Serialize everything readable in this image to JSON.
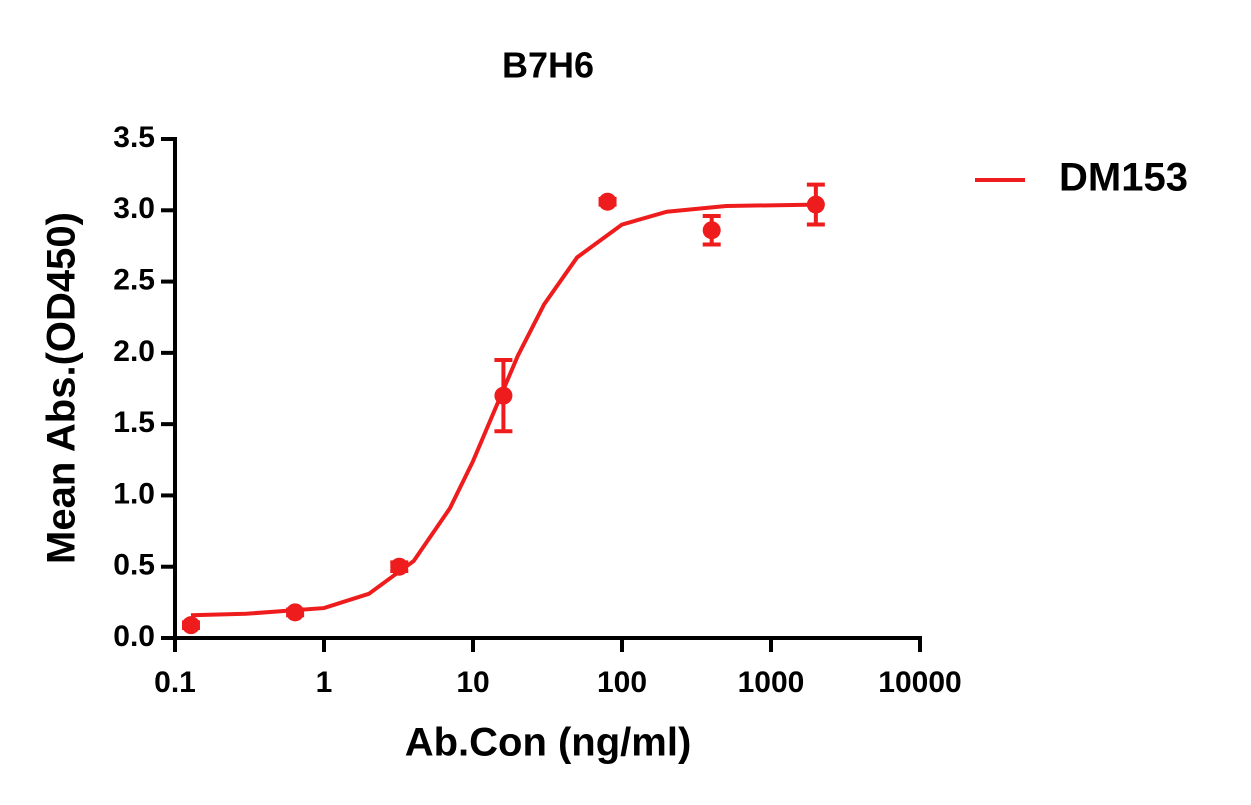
{
  "chart_data": {
    "type": "scatter",
    "title": "B7H6",
    "xlabel": "Ab.Con (ng/ml)",
    "ylabel": "Mean Abs.(OD450)",
    "xscale": "log",
    "xlim": [
      0.1,
      10000
    ],
    "xticks": [
      0.1,
      1,
      10,
      100,
      1000,
      10000
    ],
    "ylim": [
      0,
      3.5
    ],
    "yticks": [
      {
        "value": 0,
        "label": "0.0"
      },
      0.5,
      {
        "value": 1,
        "label": "1.0"
      },
      1.5,
      {
        "value": 2,
        "label": "2.0"
      },
      2.5,
      {
        "value": 3,
        "label": "3.0"
      },
      3.5
    ],
    "legend": "right",
    "series": [
      {
        "name": "DM153",
        "color": "#ee1c1c",
        "x": [
          0.128,
          0.64,
          3.2,
          16,
          80,
          400,
          2000
        ],
        "values": [
          0.09,
          0.18,
          0.5,
          1.7,
          3.06,
          2.86,
          3.04
        ],
        "errors": [
          0.02,
          0.02,
          0.03,
          0.25,
          0.02,
          0.1,
          0.14
        ],
        "curve": {
          "x": [
            0.128,
            0.3,
            1,
            2,
            4,
            7,
            10,
            14,
            20,
            30,
            50,
            100,
            200,
            500,
            2000
          ],
          "values": [
            0.16,
            0.17,
            0.21,
            0.31,
            0.54,
            0.91,
            1.24,
            1.6,
            1.98,
            2.34,
            2.67,
            2.9,
            2.99,
            3.03,
            3.04
          ]
        }
      }
    ]
  }
}
